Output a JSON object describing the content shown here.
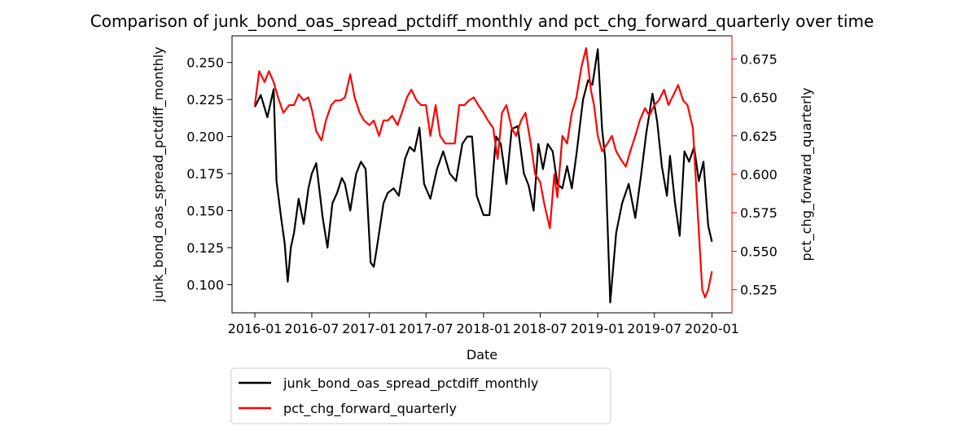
{
  "chart_data": {
    "type": "line",
    "title": "Comparison of junk_bond_oas_spread_pctdiff_monthly and pct_chg_forward_quarterly over time",
    "xlabel": "Date",
    "ylabel_left": "junk_bond_oas_spread_pctdiff_monthly",
    "ylabel_right": "pct_chg_forward_quarterly",
    "x_ticks": [
      "2016-01",
      "2016-07",
      "2017-01",
      "2017-07",
      "2018-01",
      "2018-07",
      "2019-01",
      "2019-07",
      "2020-01"
    ],
    "y_left_ticks": [
      "0.100",
      "0.125",
      "0.150",
      "0.175",
      "0.200",
      "0.225",
      "0.250"
    ],
    "y_right_ticks": [
      "0.525",
      "0.550",
      "0.575",
      "0.600",
      "0.625",
      "0.650",
      "0.675"
    ],
    "xlim": [
      "2015-10-20",
      "2020-03-05"
    ],
    "ylim_left": [
      0.081,
      0.268
    ],
    "ylim_right": [
      0.51,
      0.69
    ],
    "legend_position": "below plot, left",
    "grid": false,
    "series": [
      {
        "name": "junk_bond_oas_spread_pctdiff_monthly",
        "axis": "left",
        "color": "#000000",
        "x": [
          "2016-01-01",
          "2016-01-20",
          "2016-02-10",
          "2016-03-01",
          "2016-03-10",
          "2016-03-25",
          "2016-04-05",
          "2016-04-15",
          "2016-04-25",
          "2016-05-05",
          "2016-05-20",
          "2016-06-05",
          "2016-06-20",
          "2016-07-01",
          "2016-07-15",
          "2016-08-05",
          "2016-08-20",
          "2016-09-05",
          "2016-09-20",
          "2016-10-05",
          "2016-10-15",
          "2016-11-01",
          "2016-11-20",
          "2016-12-05",
          "2016-12-20",
          "2017-01-05",
          "2017-01-15",
          "2017-01-25",
          "2017-02-15",
          "2017-03-01",
          "2017-03-20",
          "2017-04-05",
          "2017-04-25",
          "2017-05-10",
          "2017-05-25",
          "2017-06-10",
          "2017-06-25",
          "2017-07-15",
          "2017-08-05",
          "2017-08-25",
          "2017-09-15",
          "2017-10-05",
          "2017-10-25",
          "2017-11-10",
          "2017-11-25",
          "2017-12-10",
          "2018-01-01",
          "2018-01-20",
          "2018-02-10",
          "2018-02-25",
          "2018-03-15",
          "2018-04-01",
          "2018-04-20",
          "2018-05-10",
          "2018-05-25",
          "2018-06-10",
          "2018-06-25",
          "2018-07-10",
          "2018-07-25",
          "2018-08-10",
          "2018-08-25",
          "2018-09-10",
          "2018-09-25",
          "2018-10-10",
          "2018-10-25",
          "2018-11-15",
          "2018-12-01",
          "2018-12-15",
          "2019-01-01",
          "2019-01-15",
          "2019-01-25",
          "2019-02-10",
          "2019-03-01",
          "2019-03-20",
          "2019-04-10",
          "2019-05-01",
          "2019-05-20",
          "2019-06-05",
          "2019-06-25",
          "2019-07-10",
          "2019-07-25",
          "2019-08-10",
          "2019-08-20",
          "2019-09-05",
          "2019-09-20",
          "2019-10-05",
          "2019-10-20",
          "2019-11-05",
          "2019-11-20",
          "2019-12-05",
          "2019-12-20",
          "2020-01-01"
        ],
        "y": [
          0.22,
          0.228,
          0.213,
          0.232,
          0.17,
          0.145,
          0.128,
          0.102,
          0.125,
          0.135,
          0.158,
          0.141,
          0.165,
          0.175,
          0.182,
          0.145,
          0.125,
          0.155,
          0.162,
          0.172,
          0.168,
          0.15,
          0.175,
          0.183,
          0.178,
          0.115,
          0.112,
          0.125,
          0.155,
          0.162,
          0.165,
          0.16,
          0.185,
          0.193,
          0.19,
          0.206,
          0.168,
          0.158,
          0.178,
          0.19,
          0.175,
          0.17,
          0.195,
          0.2,
          0.2,
          0.16,
          0.147,
          0.147,
          0.2,
          0.195,
          0.168,
          0.205,
          0.207,
          0.175,
          0.167,
          0.15,
          0.195,
          0.178,
          0.195,
          0.19,
          0.168,
          0.165,
          0.18,
          0.165,
          0.188,
          0.225,
          0.238,
          0.235,
          0.259,
          0.205,
          0.185,
          0.088,
          0.135,
          0.155,
          0.168,
          0.145,
          0.175,
          0.202,
          0.229,
          0.21,
          0.18,
          0.16,
          0.187,
          0.155,
          0.133,
          0.19,
          0.183,
          0.193,
          0.17,
          0.183,
          0.14,
          0.129
        ]
      },
      {
        "name": "pct_chg_forward_quarterly",
        "axis": "right",
        "color": "#ff0000",
        "x": [
          "2016-01-01",
          "2016-01-15",
          "2016-02-01",
          "2016-02-15",
          "2016-03-01",
          "2016-03-15",
          "2016-04-01",
          "2016-04-20",
          "2016-05-05",
          "2016-05-20",
          "2016-06-05",
          "2016-06-20",
          "2016-07-01",
          "2016-07-15",
          "2016-08-01",
          "2016-08-15",
          "2016-09-01",
          "2016-09-15",
          "2016-10-01",
          "2016-10-15",
          "2016-11-01",
          "2016-11-15",
          "2016-12-01",
          "2016-12-15",
          "2017-01-01",
          "2017-01-15",
          "2017-02-01",
          "2017-02-15",
          "2017-03-01",
          "2017-03-15",
          "2017-04-01",
          "2017-04-15",
          "2017-05-01",
          "2017-05-15",
          "2017-06-01",
          "2017-06-15",
          "2017-07-01",
          "2017-07-15",
          "2017-08-01",
          "2017-08-15",
          "2017-09-01",
          "2017-09-15",
          "2017-10-01",
          "2017-10-15",
          "2017-11-01",
          "2017-11-15",
          "2017-12-01",
          "2017-12-15",
          "2018-01-01",
          "2018-01-15",
          "2018-02-01",
          "2018-02-15",
          "2018-03-01",
          "2018-03-15",
          "2018-04-01",
          "2018-04-15",
          "2018-05-01",
          "2018-05-15",
          "2018-06-01",
          "2018-06-15",
          "2018-07-01",
          "2018-07-15",
          "2018-08-01",
          "2018-08-15",
          "2018-08-25",
          "2018-09-10",
          "2018-09-25",
          "2018-10-10",
          "2018-10-25",
          "2018-11-10",
          "2018-11-25",
          "2018-12-10",
          "2018-12-20",
          "2019-01-01",
          "2019-01-15",
          "2019-02-01",
          "2019-02-15",
          "2019-03-01",
          "2019-03-15",
          "2019-04-01",
          "2019-04-15",
          "2019-05-01",
          "2019-05-15",
          "2019-06-01",
          "2019-06-15",
          "2019-07-01",
          "2019-07-15",
          "2019-08-01",
          "2019-08-15",
          "2019-09-01",
          "2019-09-15",
          "2019-10-01",
          "2019-10-15",
          "2019-11-01",
          "2019-11-15",
          "2019-12-01",
          "2019-12-10",
          "2019-12-20",
          "2020-01-01"
        ],
        "y": [
          0.645,
          0.667,
          0.66,
          0.667,
          0.66,
          0.65,
          0.64,
          0.645,
          0.645,
          0.652,
          0.648,
          0.65,
          0.642,
          0.628,
          0.622,
          0.635,
          0.645,
          0.648,
          0.648,
          0.65,
          0.665,
          0.65,
          0.64,
          0.635,
          0.632,
          0.635,
          0.625,
          0.635,
          0.635,
          0.638,
          0.632,
          0.64,
          0.65,
          0.655,
          0.648,
          0.645,
          0.645,
          0.625,
          0.645,
          0.625,
          0.62,
          0.62,
          0.62,
          0.645,
          0.645,
          0.648,
          0.65,
          0.645,
          0.64,
          0.635,
          0.63,
          0.61,
          0.64,
          0.645,
          0.63,
          0.625,
          0.635,
          0.64,
          0.62,
          0.6,
          0.595,
          0.58,
          0.565,
          0.6,
          0.585,
          0.625,
          0.62,
          0.64,
          0.65,
          0.67,
          0.682,
          0.655,
          0.645,
          0.625,
          0.615,
          0.62,
          0.625,
          0.615,
          0.61,
          0.605,
          0.615,
          0.625,
          0.635,
          0.643,
          0.638,
          0.645,
          0.648,
          0.655,
          0.645,
          0.652,
          0.658,
          0.648,
          0.645,
          0.63,
          0.58,
          0.525,
          0.52,
          0.525,
          0.537
        ]
      }
    ]
  }
}
